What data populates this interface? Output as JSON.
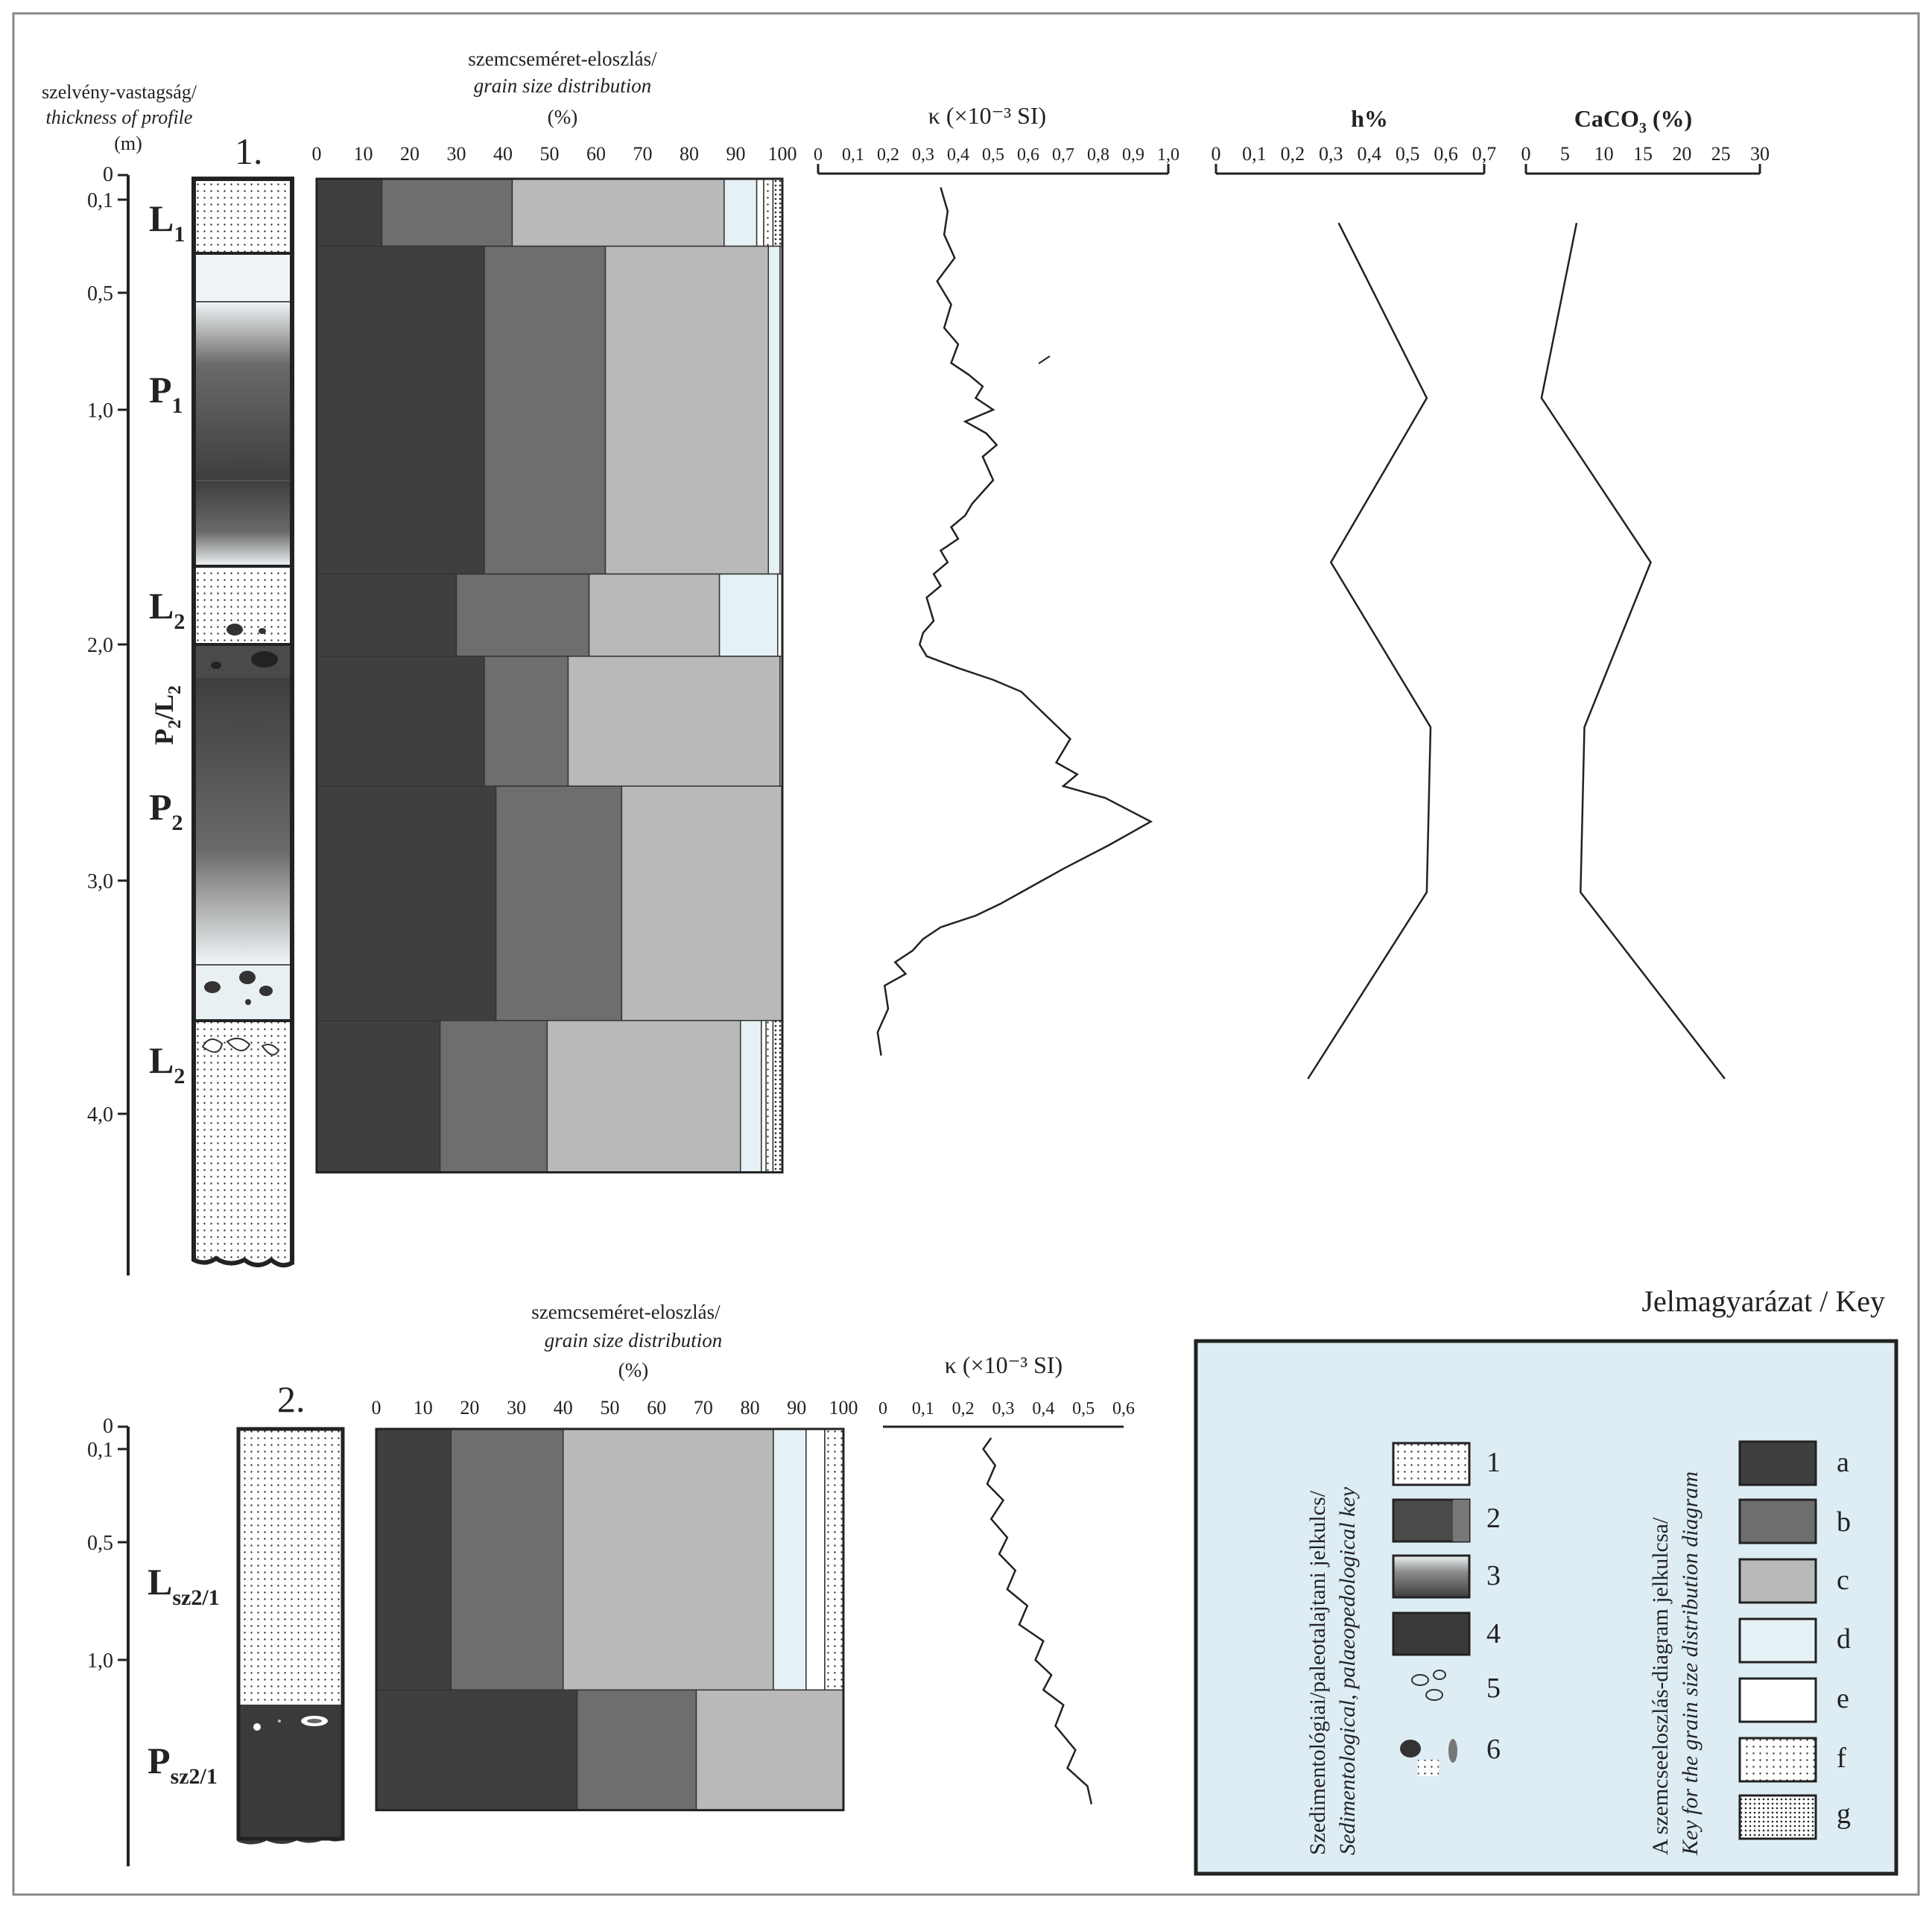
{
  "thickness_axis": {
    "label_hu": "szelvény-vastagság/",
    "label_en": "thickness of profile",
    "unit": "(m)"
  },
  "profile1": {
    "number": "1.",
    "depth_ticks": [
      "0",
      "0,1",
      "0,5",
      "1,0",
      "2,0",
      "3,0",
      "4,0"
    ],
    "layers": [
      {
        "label": "L",
        "sub": "1"
      },
      {
        "label": "P",
        "sub": "1"
      },
      {
        "label": "L",
        "sub": "2"
      },
      {
        "label": "P",
        "sub": "2",
        "suffix": "/L",
        "suffix_sub": "2"
      },
      {
        "label": "P",
        "sub": "2"
      },
      {
        "label": "L",
        "sub": "2"
      }
    ],
    "grain": {
      "title_hu": "szemcseméret-eloszlás/",
      "title_en": "grain size distribution",
      "unit": "(%)",
      "ticks": [
        "0",
        "10",
        "20",
        "30",
        "40",
        "50",
        "60",
        "70",
        "80",
        "90",
        "100"
      ]
    },
    "kappa": {
      "title": "κ (×10⁻³ SI)",
      "ticks": [
        "0",
        "0,1",
        "0,2",
        "0,3",
        "0,4",
        "0,5",
        "0,6",
        "0,7",
        "0,8",
        "0,9",
        "1,0"
      ]
    },
    "humus": {
      "title": "h%",
      "ticks": [
        "0",
        "0,1",
        "0,2",
        "0,3",
        "0,4",
        "0,5",
        "0,6",
        "0,7"
      ]
    },
    "caco3": {
      "title": "CaCO",
      "title_sub": "3",
      "title_unit": " (%)",
      "ticks": [
        "0",
        "5",
        "10",
        "15",
        "20",
        "25",
        "30"
      ]
    }
  },
  "profile2": {
    "number": "2.",
    "depth_ticks": [
      "0",
      "0,1",
      "0,5",
      "1,0"
    ],
    "layers": [
      {
        "label": "L",
        "sub": "sz2/1"
      },
      {
        "label": "P",
        "sub": "sz2/1"
      }
    ],
    "grain": {
      "title_hu": "szemcseméret-eloszlás/",
      "title_en": "grain size distribution",
      "unit": "(%)",
      "ticks": [
        "0",
        "10",
        "20",
        "30",
        "40",
        "50",
        "60",
        "70",
        "80",
        "90",
        "100"
      ]
    },
    "kappa": {
      "title": "κ (×10⁻³ SI)",
      "ticks": [
        "0",
        "0,1",
        "0,2",
        "0,3",
        "0,4",
        "0,5",
        "0,6"
      ]
    }
  },
  "key": {
    "title": "Jelmagyarázat / Key",
    "sed_label_hu": "Szedimentológiai/paleotalajtani jelkulcs/",
    "sed_label_en": "Sedimentological, palaeopedological key",
    "grain_label_hu": "A szemcseeloszlás-diagram jelkulcsa/",
    "grain_label_en": "Key for the grain size distribution diagram",
    "sed_items": [
      "1",
      "2",
      "3",
      "4",
      "5",
      "6"
    ],
    "grain_items": [
      "a",
      "b",
      "c",
      "d",
      "e",
      "f",
      "g"
    ]
  },
  "colors": {
    "a": "#3f3f3f",
    "b": "#6e6e6e",
    "c": "#b9b9b9",
    "d": "#e6f1f6",
    "e": "#ffffff",
    "key_bg": "#deedf4",
    "dark_soil": "#3a3a3a"
  },
  "chart_data": [
    {
      "type": "bar",
      "name_ref": "profile1-grain",
      "orientation": "horizontal-stacked",
      "categories": [
        "a",
        "b",
        "c",
        "d",
        "e",
        "f",
        "g"
      ],
      "depth_intervals_m": [
        [
          0,
          0.3
        ],
        [
          0.3,
          1.7
        ],
        [
          1.7,
          2.05
        ],
        [
          2.05,
          2.6
        ],
        [
          2.6,
          3.6
        ],
        [
          3.6,
          4.25
        ]
      ],
      "cumulative_boundaries_percent": [
        [
          14,
          42,
          87.5,
          94.5,
          96,
          98,
          100
        ],
        [
          36,
          62,
          97,
          99.5,
          100,
          100,
          100
        ],
        [
          30,
          58.5,
          86.5,
          99,
          100,
          100,
          100
        ],
        [
          36,
          54,
          99.5,
          100,
          100,
          100,
          100
        ],
        [
          38.5,
          65.5,
          100,
          100,
          100,
          100,
          100
        ],
        [
          26.5,
          49.5,
          91,
          95.5,
          96.5,
          98,
          100
        ]
      ],
      "xlim": [
        0,
        100
      ]
    },
    {
      "type": "line",
      "name_ref": "profile1-kappa",
      "x": [
        0.35,
        0.37,
        0.36,
        0.39,
        0.34,
        0.38,
        0.36,
        0.4,
        0.38,
        0.43,
        0.47,
        0.45,
        0.5,
        0.42,
        0.48,
        0.51,
        0.47,
        0.5,
        0.44,
        0.42,
        0.38,
        0.4,
        0.35,
        0.37,
        0.33,
        0.35,
        0.31,
        0.33,
        0.3,
        0.29,
        0.31,
        0.4,
        0.5,
        0.58,
        0.65,
        0.72,
        0.68,
        0.74,
        0.7,
        0.82,
        0.95,
        0.83,
        0.7,
        0.58,
        0.52,
        0.45,
        0.35,
        0.3,
        0.27,
        0.22,
        0.25,
        0.19,
        0.2,
        0.17,
        0.18
      ],
      "y": [
        0.05,
        0.15,
        0.25,
        0.35,
        0.45,
        0.55,
        0.65,
        0.72,
        0.8,
        0.85,
        0.9,
        0.95,
        1.0,
        1.05,
        1.1,
        1.15,
        1.2,
        1.3,
        1.4,
        1.45,
        1.5,
        1.55,
        1.6,
        1.65,
        1.7,
        1.75,
        1.8,
        1.9,
        1.95,
        2.0,
        2.05,
        2.1,
        2.15,
        2.2,
        2.3,
        2.4,
        2.5,
        2.55,
        2.6,
        2.65,
        2.75,
        2.85,
        2.95,
        3.05,
        3.1,
        3.15,
        3.2,
        3.25,
        3.3,
        3.35,
        3.4,
        3.45,
        3.55,
        3.65,
        3.75
      ],
      "xlim": [
        0,
        1.0
      ],
      "ylim": [
        0,
        4.7
      ]
    },
    {
      "type": "line",
      "name_ref": "profile1-humus",
      "x": [
        0.32,
        0.55,
        0.3,
        0.56,
        0.55,
        0.24
      ],
      "y": [
        0.2,
        0.95,
        1.65,
        2.35,
        3.05,
        3.85
      ],
      "xlim": [
        0,
        0.7
      ],
      "ylim": [
        0,
        4.7
      ]
    },
    {
      "type": "line",
      "name_ref": "profile1-caco3",
      "x": [
        6.5,
        2,
        16,
        7.5,
        7,
        25.5
      ],
      "y": [
        0.2,
        0.95,
        1.65,
        2.35,
        3.05,
        3.85
      ],
      "xlim": [
        0,
        30
      ],
      "ylim": [
        0,
        4.7
      ]
    },
    {
      "type": "bar",
      "name_ref": "profile2-grain",
      "orientation": "horizontal-stacked",
      "categories": [
        "a",
        "b",
        "c",
        "d",
        "e",
        "f",
        "g"
      ],
      "depth_intervals_m": [
        [
          0,
          1.1
        ],
        [
          1.1,
          1.5
        ]
      ],
      "cumulative_boundaries_percent": [
        [
          16,
          40,
          85,
          92,
          96,
          100,
          100
        ],
        [
          43,
          68.5,
          100,
          100,
          100,
          100,
          100
        ]
      ],
      "xlim": [
        0,
        100
      ]
    },
    {
      "type": "line",
      "name_ref": "profile2-kappa",
      "x": [
        0.27,
        0.25,
        0.28,
        0.26,
        0.3,
        0.27,
        0.31,
        0.29,
        0.33,
        0.31,
        0.36,
        0.34,
        0.4,
        0.38,
        0.42,
        0.4,
        0.45,
        0.43,
        0.48,
        0.46,
        0.51,
        0.52
      ],
      "y": [
        0.05,
        0.1,
        0.17,
        0.25,
        0.32,
        0.4,
        0.48,
        0.55,
        0.62,
        0.7,
        0.77,
        0.85,
        0.92,
        1.0,
        1.05,
        1.1,
        1.15,
        1.22,
        1.3,
        1.36,
        1.42,
        1.48
      ],
      "xlim": [
        0,
        0.6
      ],
      "ylim": [
        0,
        1.6
      ]
    }
  ]
}
